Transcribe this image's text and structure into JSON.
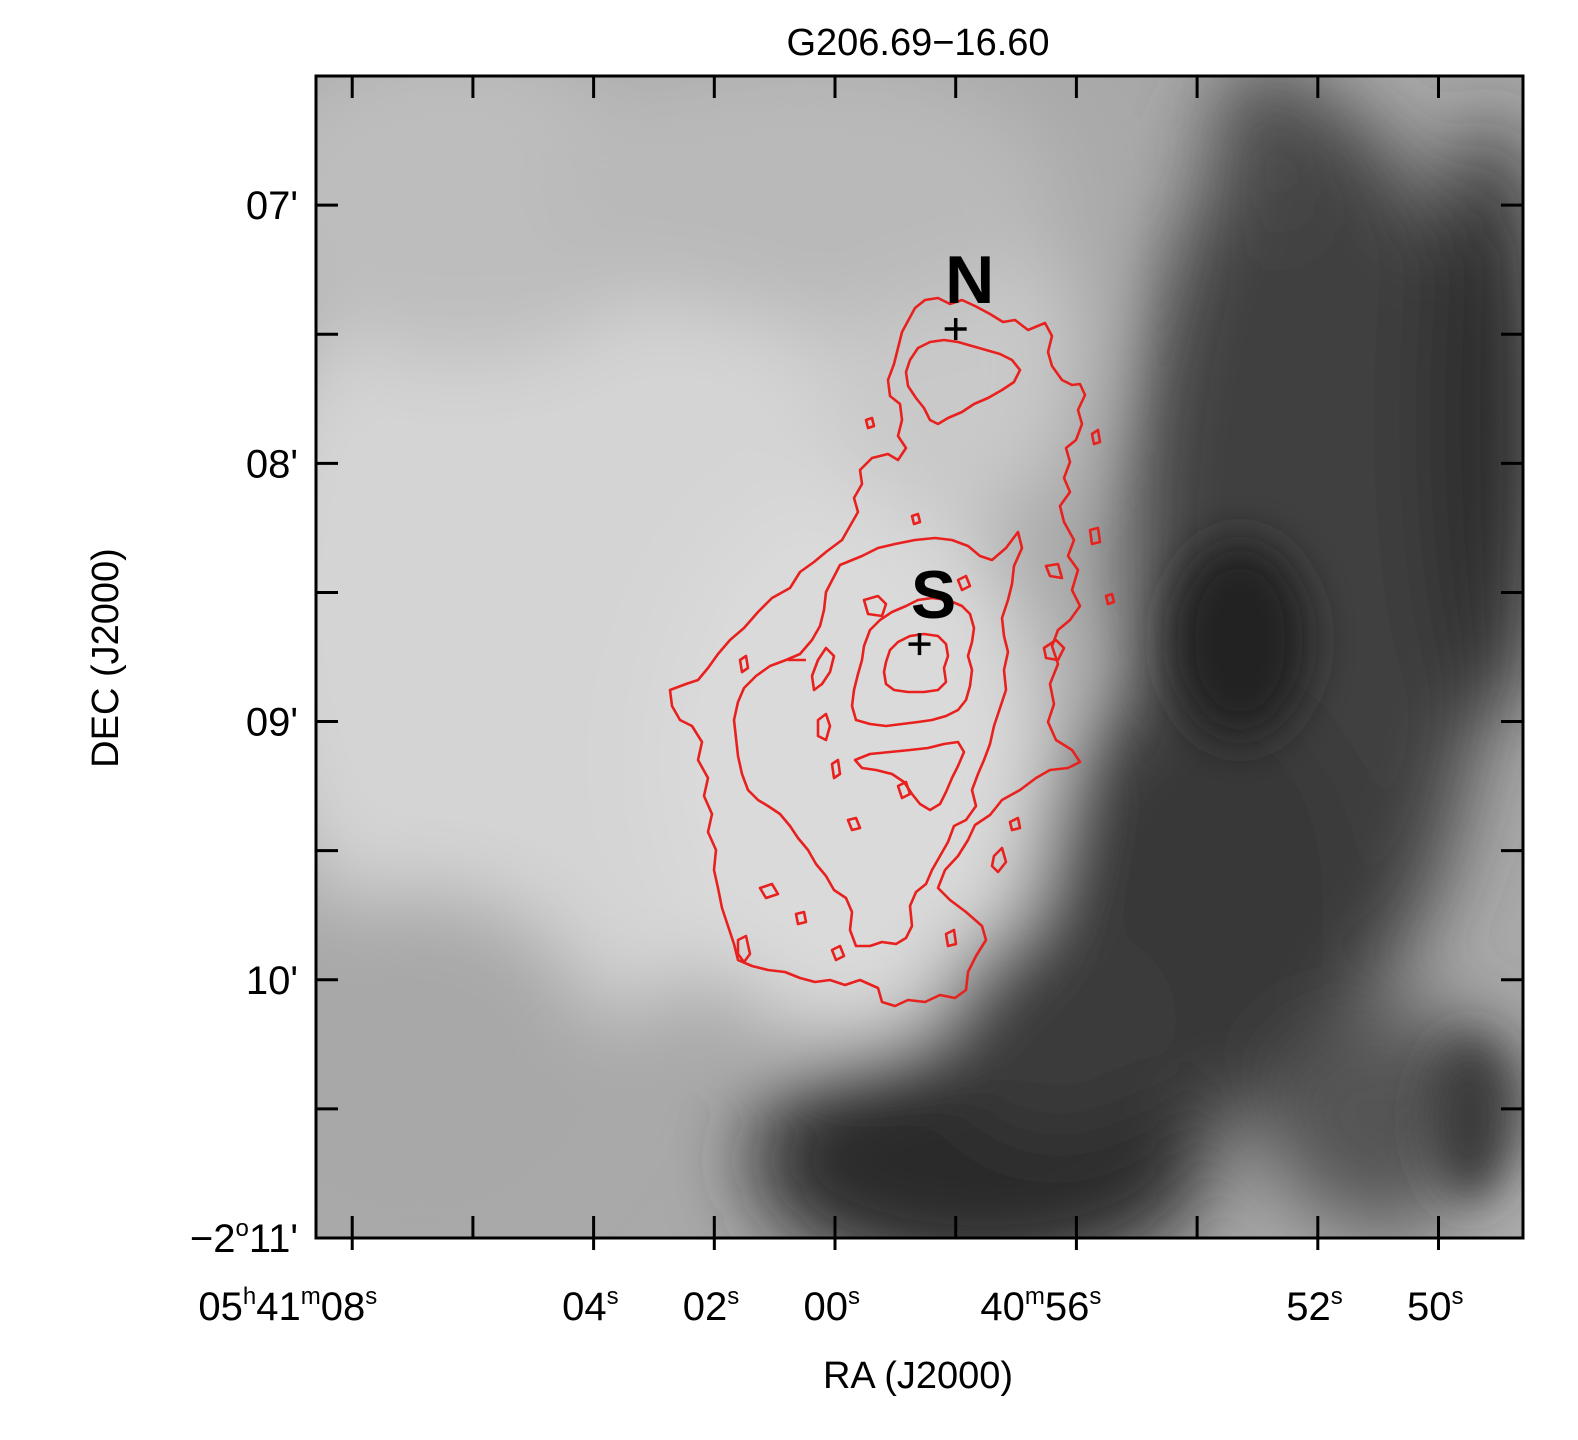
{
  "chart_data": {
    "type": "heatmap",
    "title": "G206.69−16.60",
    "xlabel": "RA (J2000)",
    "ylabel": "DEC (J2000)",
    "x_ticks": [
      {
        "h": "05",
        "m": "41",
        "s": "08",
        "kind": "hms"
      },
      {
        "s": "04",
        "kind": "s"
      },
      {
        "s": "02",
        "kind": "s"
      },
      {
        "s": "00",
        "kind": "s"
      },
      {
        "m": "40",
        "s": "56",
        "kind": "ms"
      },
      {
        "s": "52",
        "kind": "s"
      },
      {
        "s": "50",
        "kind": "s"
      }
    ],
    "y_ticks": [
      {
        "label": "07'",
        "kind": "min"
      },
      {
        "label": "08'",
        "kind": "min"
      },
      {
        "label": "09'",
        "kind": "min"
      },
      {
        "label": "10'",
        "kind": "min"
      },
      {
        "deg": "−2",
        "arcmin": "11'",
        "kind": "deg"
      }
    ],
    "units": {
      "h": "h",
      "m": "m",
      "s": "s",
      "deg": "o"
    },
    "x_range_seconds_after_05h40m": [
      48.6,
      68.6
    ],
    "y_range_arcmin_below_minus2deg": [
      6.5,
      11.0
    ],
    "sources": [
      {
        "label": "N",
        "ra_s_after_05h40m": 58.0,
        "dec_arcmin": 7.48
      },
      {
        "label": "S",
        "ra_s_after_05h40m": 58.6,
        "dec_arcmin": 8.7
      }
    ],
    "image": "grayscale intensity map, bright core in center-left, dark lanes to the east and lower right",
    "contours_color": "#e8211e",
    "grid": false,
    "legend": "none"
  }
}
